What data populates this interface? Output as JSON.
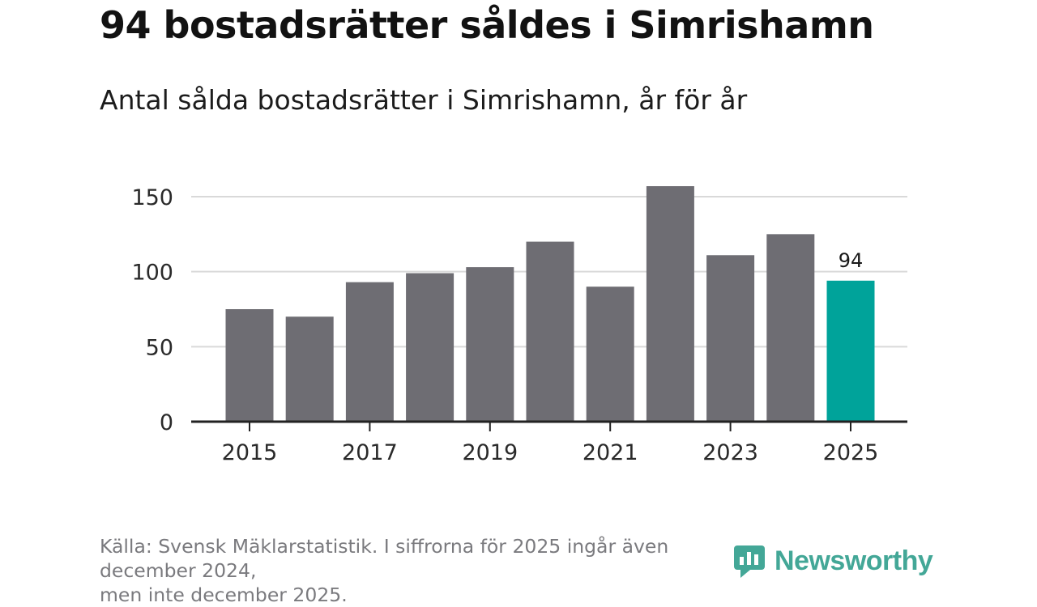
{
  "header": {
    "title": "94 bostadsrätter såldes i Simrishamn",
    "subtitle": "Antal sålda bostadsrätter i Simrishamn, år för år"
  },
  "footer": {
    "source_line1": "Källa: Svensk Mäklarstatistik. I siffrorna för 2025 ingår även december 2024,",
    "source_line2": "men inte december 2025.",
    "logo_text": "Newsworthy"
  },
  "colors": {
    "bar_default": "#6e6d73",
    "bar_highlight": "#00a39a",
    "gridline": "#d9d9d9",
    "axis": "#222222",
    "logo": "#2f9e8c"
  },
  "chart_data": {
    "type": "bar",
    "title": "94 bostadsrätter såldes i Simrishamn",
    "subtitle": "Antal sålda bostadsrätter i Simrishamn, år för år",
    "xlabel": "",
    "ylabel": "",
    "categories": [
      "2015",
      "2016",
      "2017",
      "2018",
      "2019",
      "2020",
      "2021",
      "2022",
      "2023",
      "2024",
      "2025"
    ],
    "values": [
      75,
      70,
      93,
      99,
      103,
      120,
      90,
      157,
      111,
      125,
      94
    ],
    "highlight_index": 10,
    "highlight_label": "94",
    "x_tick_labels": [
      "2015",
      "2017",
      "2019",
      "2021",
      "2023",
      "2025"
    ],
    "y_ticks": [
      0,
      50,
      100,
      150
    ],
    "ylim": [
      0,
      160
    ],
    "grid": true,
    "legend": "none"
  }
}
